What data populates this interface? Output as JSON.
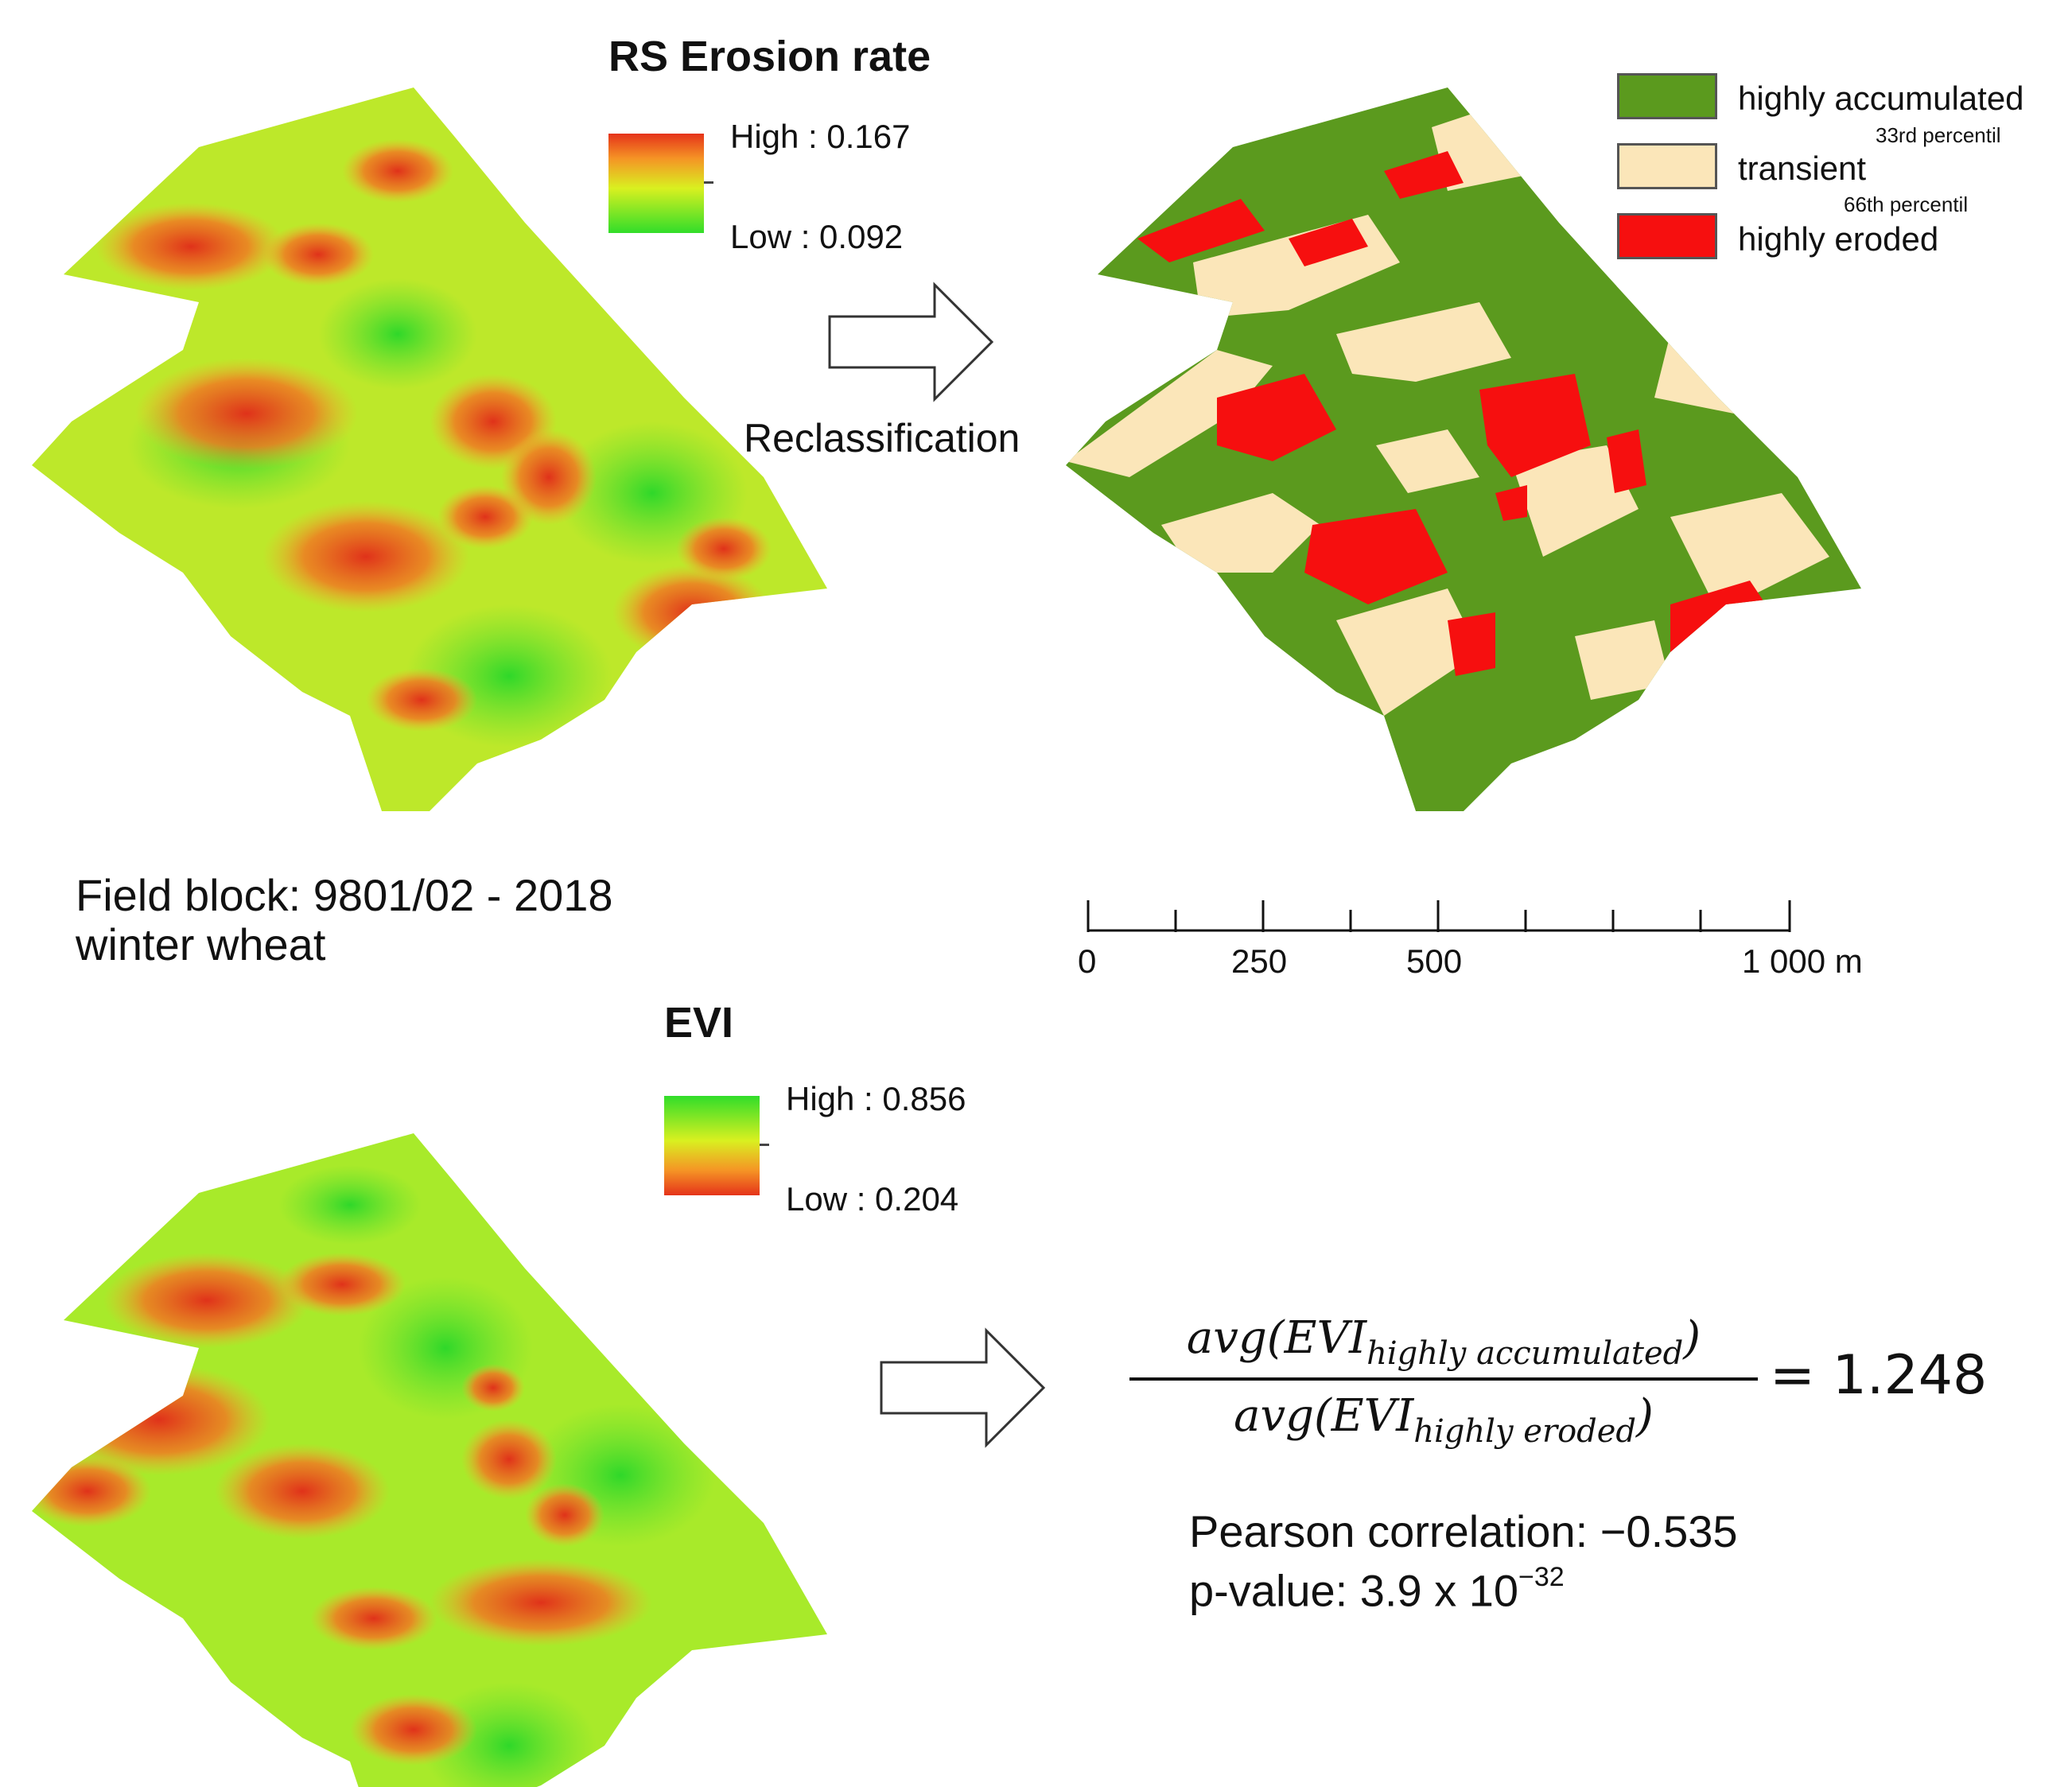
{
  "erosion": {
    "title": "RS Erosion rate",
    "legend_high": "High : 0.167",
    "legend_low": "Low : 0.092",
    "colors": {
      "low": "#4ee02a",
      "mid": "#c9f020",
      "high": "#e5331a"
    }
  },
  "reclass": {
    "label": "Reclassification",
    "classes": [
      {
        "label": "highly accumulated",
        "color": "#5b9a1e"
      },
      {
        "label": "transient",
        "color": "#fbe6b9"
      },
      {
        "label": "highly eroded",
        "color": "#f60f0f"
      }
    ],
    "percentile_33": "33rd percentil",
    "percentile_66": "66th percentil"
  },
  "field": {
    "line1": "Field block: 9801/02 - 2018",
    "line2": "winter wheat"
  },
  "scalebar": {
    "ticks": [
      "0",
      "250",
      "500",
      "1 000 m"
    ]
  },
  "evi": {
    "title": "EVI",
    "legend_high": "High : 0.856",
    "legend_low": "Low : 0.204"
  },
  "formula": {
    "numerator_func": "avg(EVI",
    "numerator_sub": "highly accumulated",
    "denominator_func": "avg(EVI",
    "denominator_sub": "highly eroded",
    "close": ")",
    "result": "= 1.248"
  },
  "stats": {
    "pearson": "Pearson correlation: −0.535",
    "pvalue_prefix": "p-value: 3.9 x 10",
    "pvalue_exp": "−32"
  }
}
